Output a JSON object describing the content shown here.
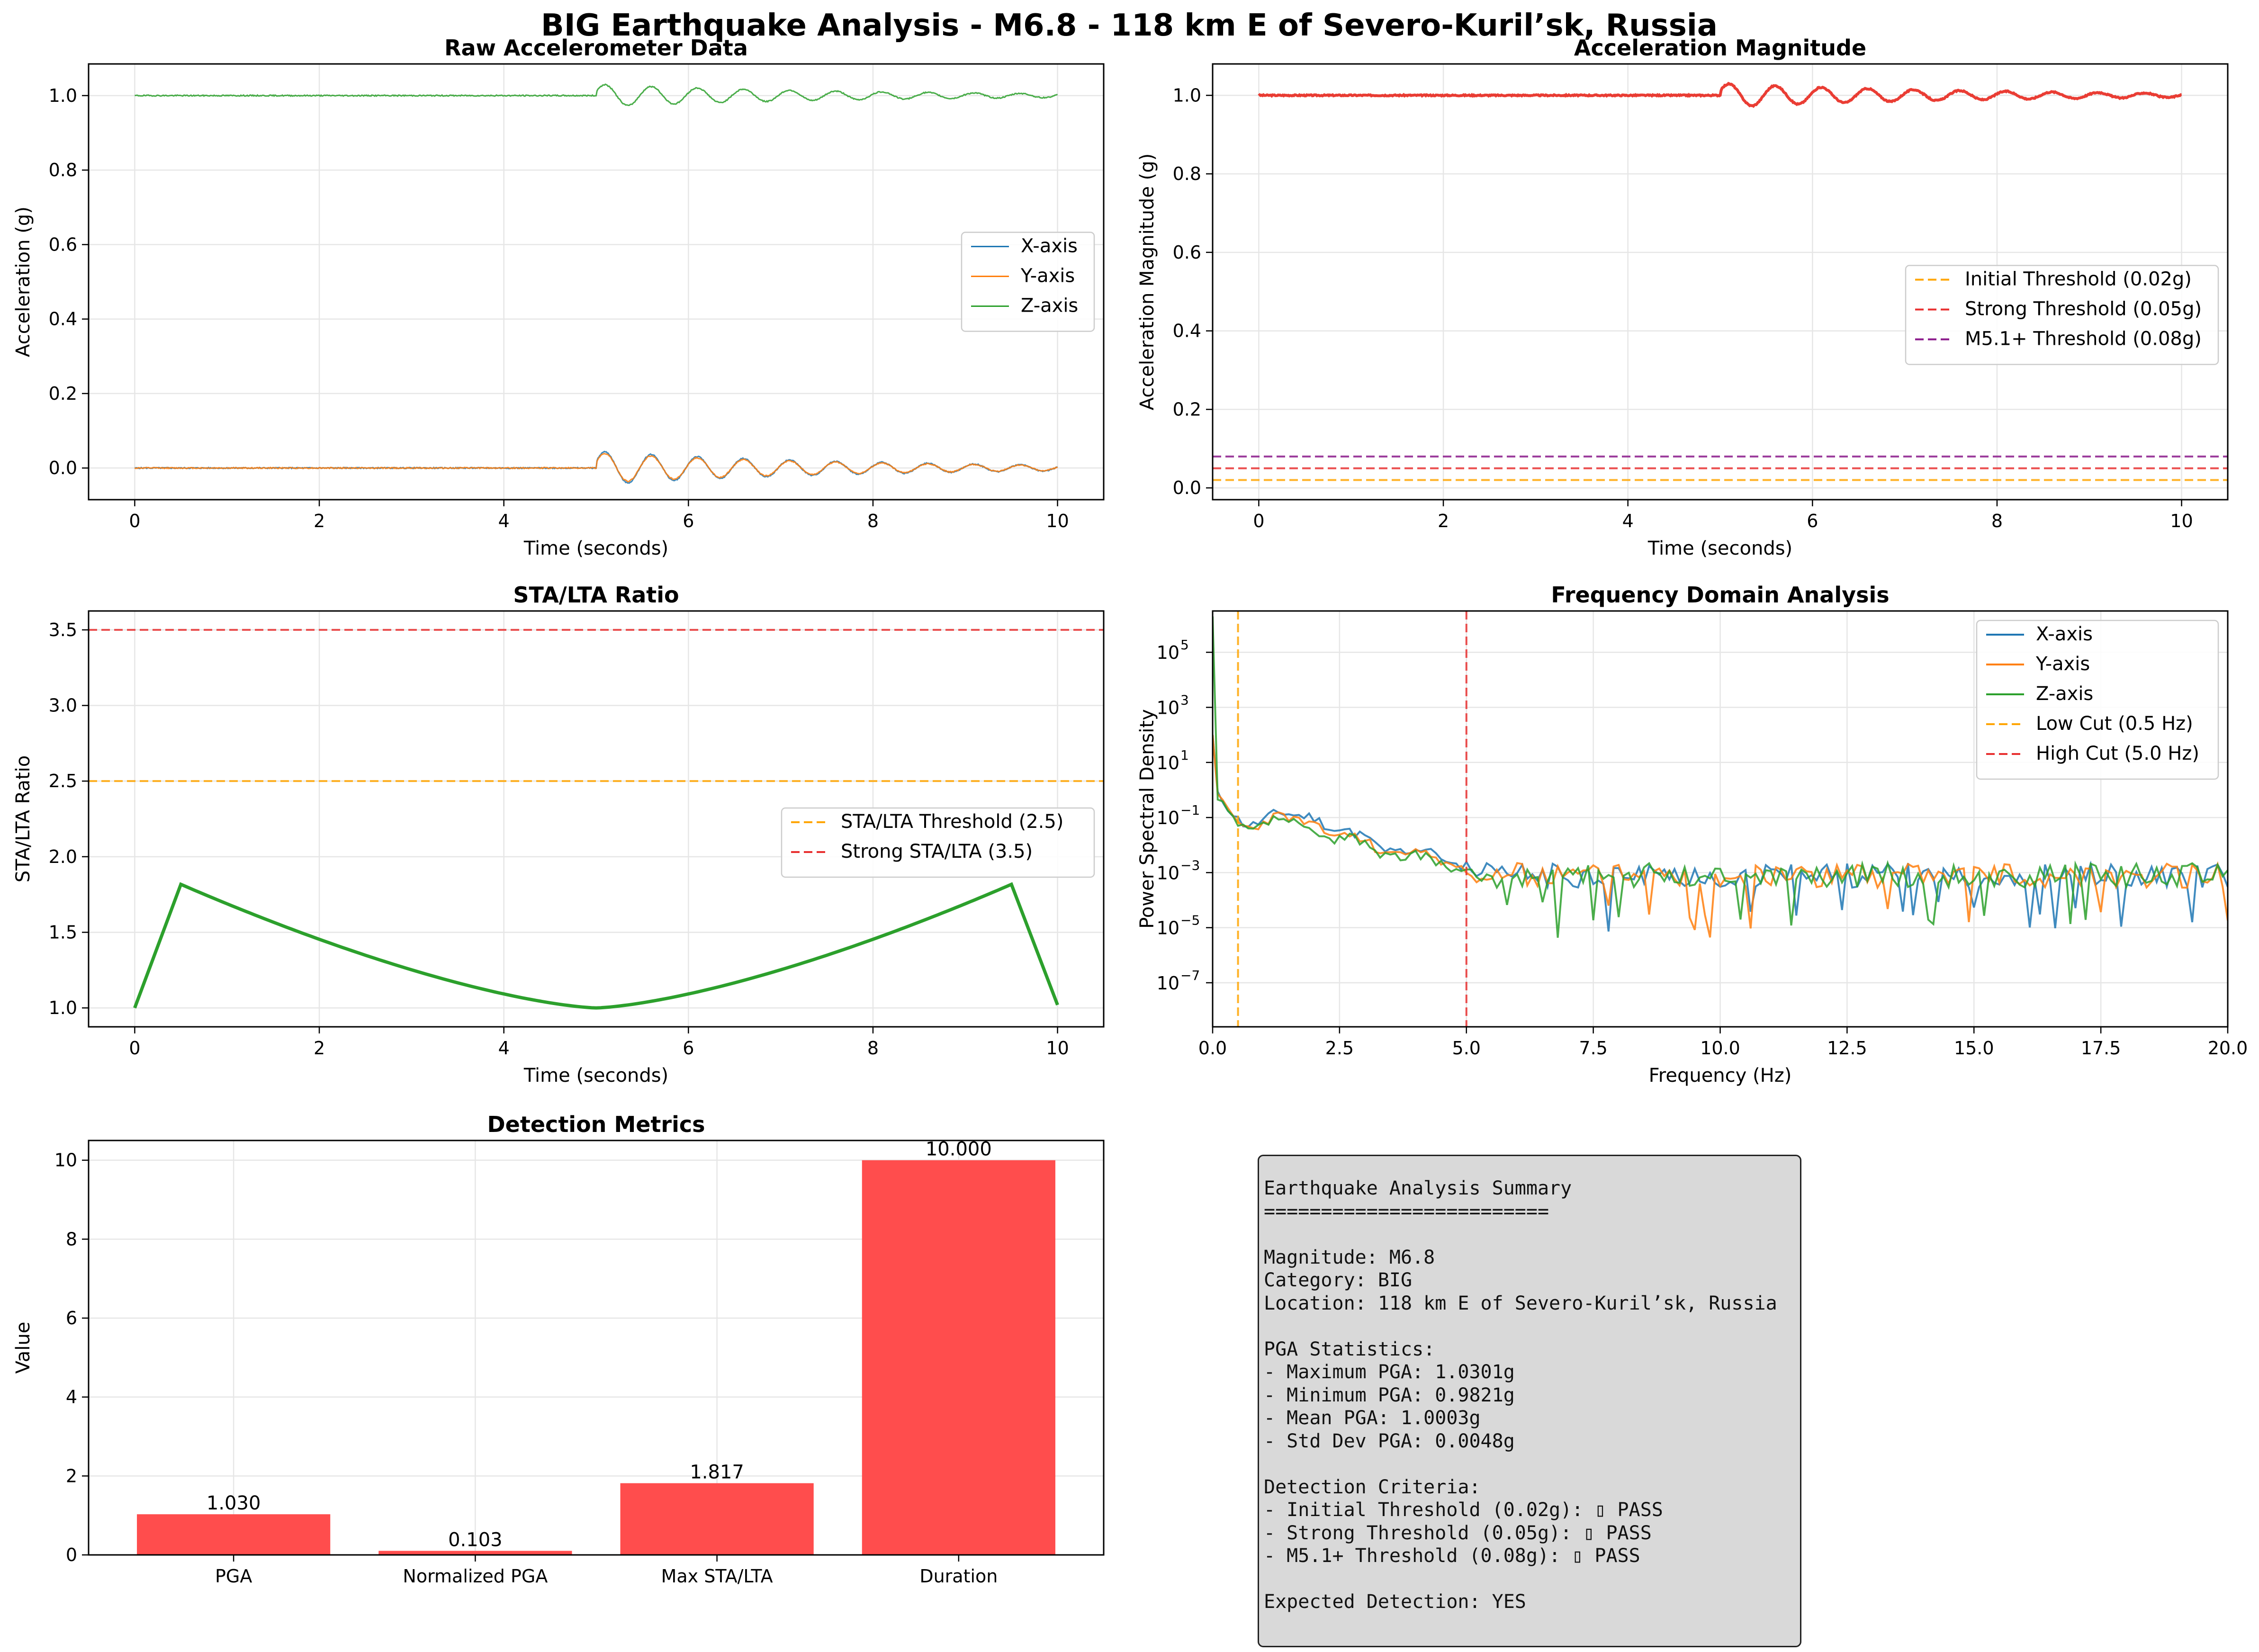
{
  "figure": {
    "suptitle": "BIG Earthquake Analysis - M6.8 - 118 km E of Severo-Kuril’sk, Russia",
    "colors": {
      "x_axis": "#1f77b4",
      "y_axis": "#ff7f0e",
      "z_axis": "#2ca02c",
      "magnitude": "#e8281e",
      "orange_thr": "#ffa500",
      "red_thr": "#e83030",
      "purple_thr": "#8b1a8b",
      "bar": "#ff4d4d",
      "sta_lta": "#2ca02c"
    }
  },
  "chart_data": [
    {
      "id": "raw",
      "type": "line",
      "title": "Raw Accelerometer Data",
      "xlabel": "Time (seconds)",
      "ylabel": "Acceleration (g)",
      "xlim": [
        -0.5,
        10.5
      ],
      "ylim": [
        -0.085,
        1.085
      ],
      "xticks": [
        0,
        2,
        4,
        6,
        8,
        10
      ],
      "yticks": [
        0.0,
        0.2,
        0.4,
        0.6,
        0.8,
        1.0
      ],
      "xtick_labels": [
        "0",
        "2",
        "4",
        "6",
        "8",
        "10"
      ],
      "ytick_labels": [
        "0.0",
        "0.2",
        "0.4",
        "0.6",
        "0.8",
        "1.0"
      ],
      "grid": true,
      "legend": "center-right",
      "series": [
        {
          "name": "X-axis",
          "baseline": 0.0,
          "event_start": 5.0,
          "amplitude": 0.045,
          "freq_hz": 2.0,
          "decay": 0.35
        },
        {
          "name": "Y-axis",
          "baseline": 0.0,
          "event_start": 5.0,
          "amplitude": 0.04,
          "freq_hz": 2.0,
          "decay": 0.35
        },
        {
          "name": "Z-axis",
          "baseline": 1.0,
          "event_start": 5.0,
          "amplitude": 0.03,
          "freq_hz": 2.0,
          "decay": 0.35
        }
      ]
    },
    {
      "id": "mag",
      "type": "line",
      "title": "Acceleration Magnitude",
      "xlabel": "Time (seconds)",
      "ylabel": "Acceleration Magnitude (g)",
      "xlim": [
        -0.5,
        10.5
      ],
      "ylim": [
        -0.03,
        1.08
      ],
      "xticks": [
        0,
        2,
        4,
        6,
        8,
        10
      ],
      "yticks": [
        0.0,
        0.2,
        0.4,
        0.6,
        0.8,
        1.0
      ],
      "xtick_labels": [
        "0",
        "2",
        "4",
        "6",
        "8",
        "10"
      ],
      "ytick_labels": [
        "0.0",
        "0.2",
        "0.4",
        "0.6",
        "0.8",
        "1.0"
      ],
      "grid": true,
      "legend": "center-right",
      "series": [
        {
          "name": "",
          "baseline": 1.0,
          "event_start": 5.0,
          "amplitude": 0.03,
          "freq_hz": 2.0,
          "decay": 0.35
        }
      ],
      "thresholds": [
        {
          "name": "Initial Threshold (0.02g)",
          "value": 0.02,
          "color": "#ffa500"
        },
        {
          "name": "Strong Threshold (0.05g)",
          "value": 0.05,
          "color": "#e83030"
        },
        {
          "name": "M5.1+ Threshold (0.08g)",
          "value": 0.08,
          "color": "#8b1a8b"
        }
      ]
    },
    {
      "id": "stalta",
      "type": "line",
      "title": "STA/LTA Ratio",
      "xlabel": "Time (seconds)",
      "ylabel": "STA/LTA Ratio",
      "xlim": [
        -0.5,
        10.5
      ],
      "ylim": [
        0.875,
        3.625
      ],
      "xticks": [
        0,
        2,
        4,
        6,
        8,
        10
      ],
      "yticks": [
        1.0,
        1.5,
        2.0,
        2.5,
        3.0,
        3.5
      ],
      "xtick_labels": [
        "0",
        "2",
        "4",
        "6",
        "8",
        "10"
      ],
      "ytick_labels": [
        "1.0",
        "1.5",
        "2.0",
        "2.5",
        "3.0",
        "3.5"
      ],
      "grid": true,
      "legend": "center-right",
      "series": [
        {
          "name": "",
          "x": [
            0,
            0.5,
            1,
            2,
            3,
            4,
            5,
            6,
            7,
            8,
            9,
            9.5,
            10
          ],
          "y": [
            1.0,
            1.817,
            1.67,
            1.43,
            1.25,
            1.11,
            1.0,
            1.11,
            1.25,
            1.43,
            1.67,
            1.817,
            1.02
          ]
        }
      ],
      "thresholds": [
        {
          "name": "STA/LTA Threshold (2.5)",
          "value": 2.5,
          "color": "#ffa500"
        },
        {
          "name": "Strong STA/LTA (3.5)",
          "value": 3.5,
          "color": "#e83030"
        }
      ]
    },
    {
      "id": "freq",
      "type": "line",
      "title": "Frequency Domain Analysis",
      "xlabel": "Frequency (Hz)",
      "ylabel": "Power Spectral Density",
      "xlim": [
        0,
        20
      ],
      "ylim_log10": [
        -8.6,
        6.5
      ],
      "yscale": "log",
      "xticks": [
        0,
        2.5,
        5,
        7.5,
        10,
        12.5,
        15,
        17.5,
        20
      ],
      "xtick_labels": [
        "0.0",
        "2.5",
        "5.0",
        "7.5",
        "10.0",
        "12.5",
        "15.0",
        "17.5",
        "20.0"
      ],
      "yticks_log10": [
        -7,
        -5,
        -3,
        -1,
        1,
        3,
        5
      ],
      "ytick_labels": [
        "10",
        "10",
        "10",
        "10",
        "10",
        "10",
        "10"
      ],
      "ytick_exponents": [
        "−7",
        "−5",
        "−3",
        "−1",
        "1",
        "3",
        "5"
      ],
      "grid": true,
      "legend": "top-right",
      "series": [
        {
          "name": "X-axis",
          "peak_log10": 0.65,
          "seed": 11
        },
        {
          "name": "Y-axis",
          "peak_log10": 0.45,
          "seed": 23
        },
        {
          "name": "Z-axis",
          "peak_log10": 0.25,
          "seed": 37
        }
      ],
      "cutoffs": [
        {
          "name": "Low Cut (0.5 Hz)",
          "value": 0.5,
          "color": "#ffa500"
        },
        {
          "name": "High Cut (5.0 Hz)",
          "value": 5.0,
          "color": "#e83030"
        }
      ]
    },
    {
      "id": "bars",
      "type": "bar",
      "title": "Detection Metrics",
      "xlabel": "",
      "ylabel": "Value",
      "ylim": [
        0,
        10.5
      ],
      "yticks": [
        0,
        2,
        4,
        6,
        8,
        10
      ],
      "ytick_labels": [
        "0",
        "2",
        "4",
        "6",
        "8",
        "10"
      ],
      "grid": true,
      "categories": [
        "PGA",
        "Normalized PGA",
        "Max STA/LTA",
        "Duration"
      ],
      "values": [
        1.03,
        0.103,
        1.817,
        10.0
      ],
      "value_labels": [
        "1.030",
        "0.103",
        "1.817",
        "10.000"
      ]
    }
  ],
  "summary": {
    "lines": [
      "Earthquake Analysis Summary",
      "=========================",
      "",
      "Magnitude: M6.8",
      "Category: BIG",
      "Location: 118 km E of Severo-Kuril’sk, Russia",
      "",
      "PGA Statistics:",
      "- Maximum PGA: 1.0301g",
      "- Minimum PGA: 0.9821g",
      "- Mean PGA: 1.0003g",
      "- Std Dev PGA: 0.0048g",
      "",
      "Detection Criteria:",
      "- Initial Threshold (0.02g): ▯ PASS",
      "- Strong Threshold (0.05g): ▯ PASS",
      "- M5.1+ Threshold (0.08g): ▯ PASS",
      "",
      "Expected Detection: YES"
    ]
  }
}
